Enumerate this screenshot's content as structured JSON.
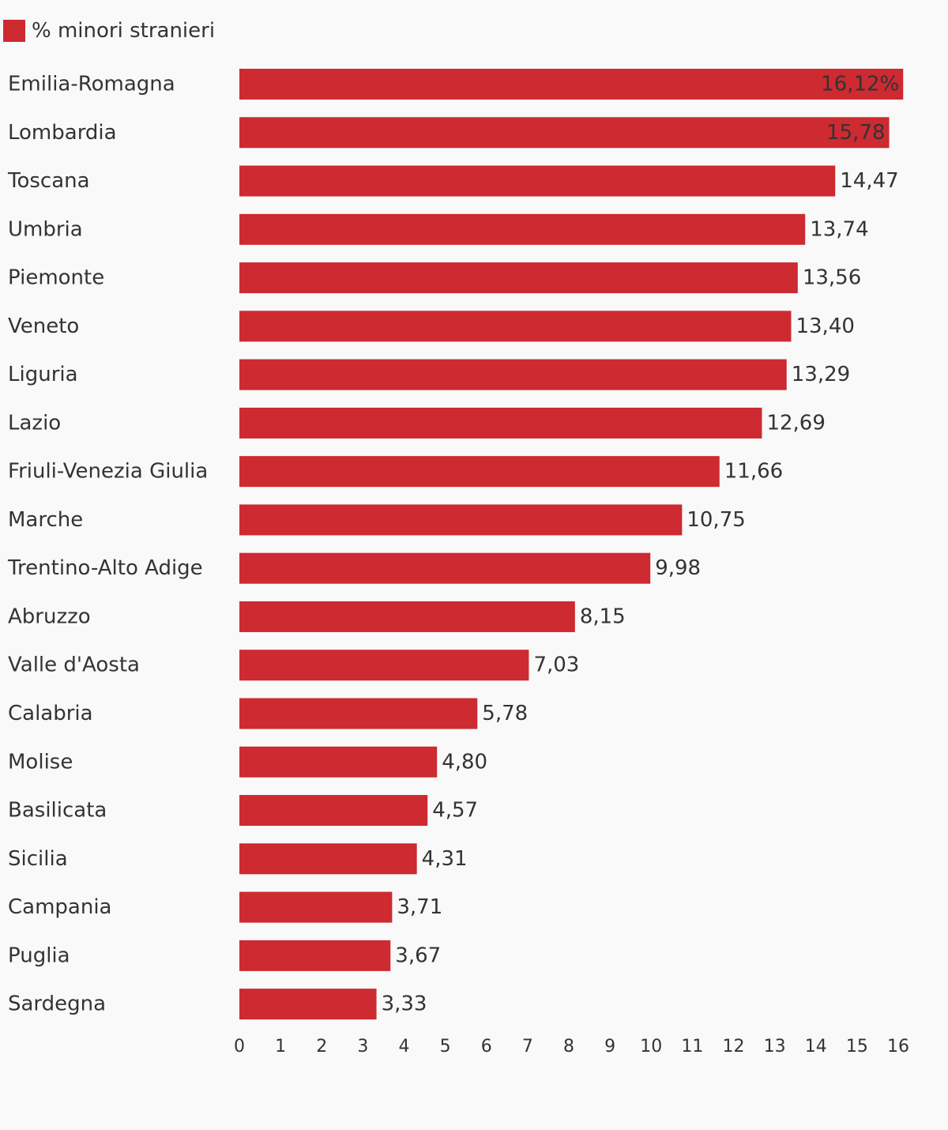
{
  "chart_data": {
    "type": "bar",
    "orientation": "horizontal",
    "series": [
      {
        "name": "% minori stranieri",
        "color": "#cd2a31",
        "values": [
          16.12,
          15.78,
          14.47,
          13.74,
          13.56,
          13.4,
          13.29,
          12.69,
          11.66,
          10.75,
          9.98,
          8.15,
          7.03,
          5.78,
          4.8,
          4.57,
          4.31,
          3.71,
          3.67,
          3.33
        ]
      }
    ],
    "categories": [
      "Emilia-Romagna",
      "Lombardia",
      "Toscana",
      "Umbria",
      "Piemonte",
      "Veneto",
      "Liguria",
      "Lazio",
      "Friuli-Venezia Giulia",
      "Marche",
      "Trentino-Alto Adige",
      "Abruzzo",
      "Valle d'Aosta",
      "Calabria",
      "Molise",
      "Basilicata",
      "Sicilia",
      "Campania",
      "Puglia",
      "Sardegna"
    ],
    "value_labels": [
      "16,12%",
      "15,78",
      "14,47",
      "13,74",
      "13,56",
      "13,40",
      "13,29",
      "12,69",
      "11,66",
      "10,75",
      "9,98",
      "8,15",
      "7,03",
      "5,78",
      "4,80",
      "4,57",
      "4,31",
      "3,71",
      "3,67",
      "3,33"
    ],
    "xlim": [
      0,
      16
    ],
    "x_ticks": [
      0,
      1,
      2,
      3,
      4,
      5,
      6,
      7,
      8,
      9,
      10,
      11,
      12,
      13,
      14,
      15,
      16
    ],
    "grid": false,
    "legend_position": "top-left",
    "title": "",
    "xlabel": "",
    "ylabel": ""
  }
}
